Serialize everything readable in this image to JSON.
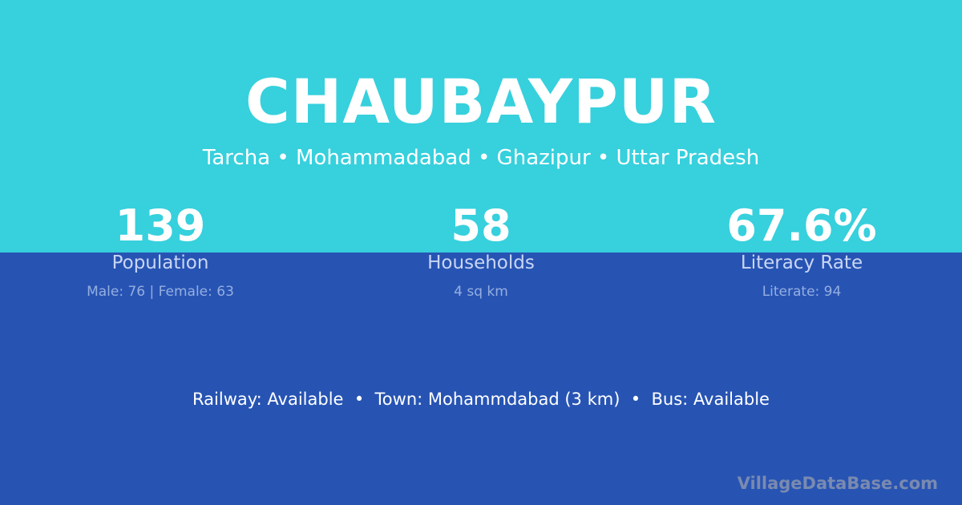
{
  "village": {
    "name": "CHAUBAYPUR",
    "location": "Tarcha • Mohammadabad • Ghazipur • Uttar Pradesh"
  },
  "stats": [
    {
      "value": "139",
      "label": "Population",
      "detail": "Male: 76 | Female: 63"
    },
    {
      "value": "58",
      "label": "Households",
      "detail": "4 sq km"
    },
    {
      "value": "67.6%",
      "label": "Literacy Rate",
      "detail": "Literate: 94"
    }
  ],
  "amenities": "Railway: Available  •  Town: Mohammdabad (3 km)  •  Bus: Available",
  "watermark": "VillageDataBase.com",
  "colors": {
    "top": "#37d0dd",
    "bottom": "#2754b3"
  }
}
